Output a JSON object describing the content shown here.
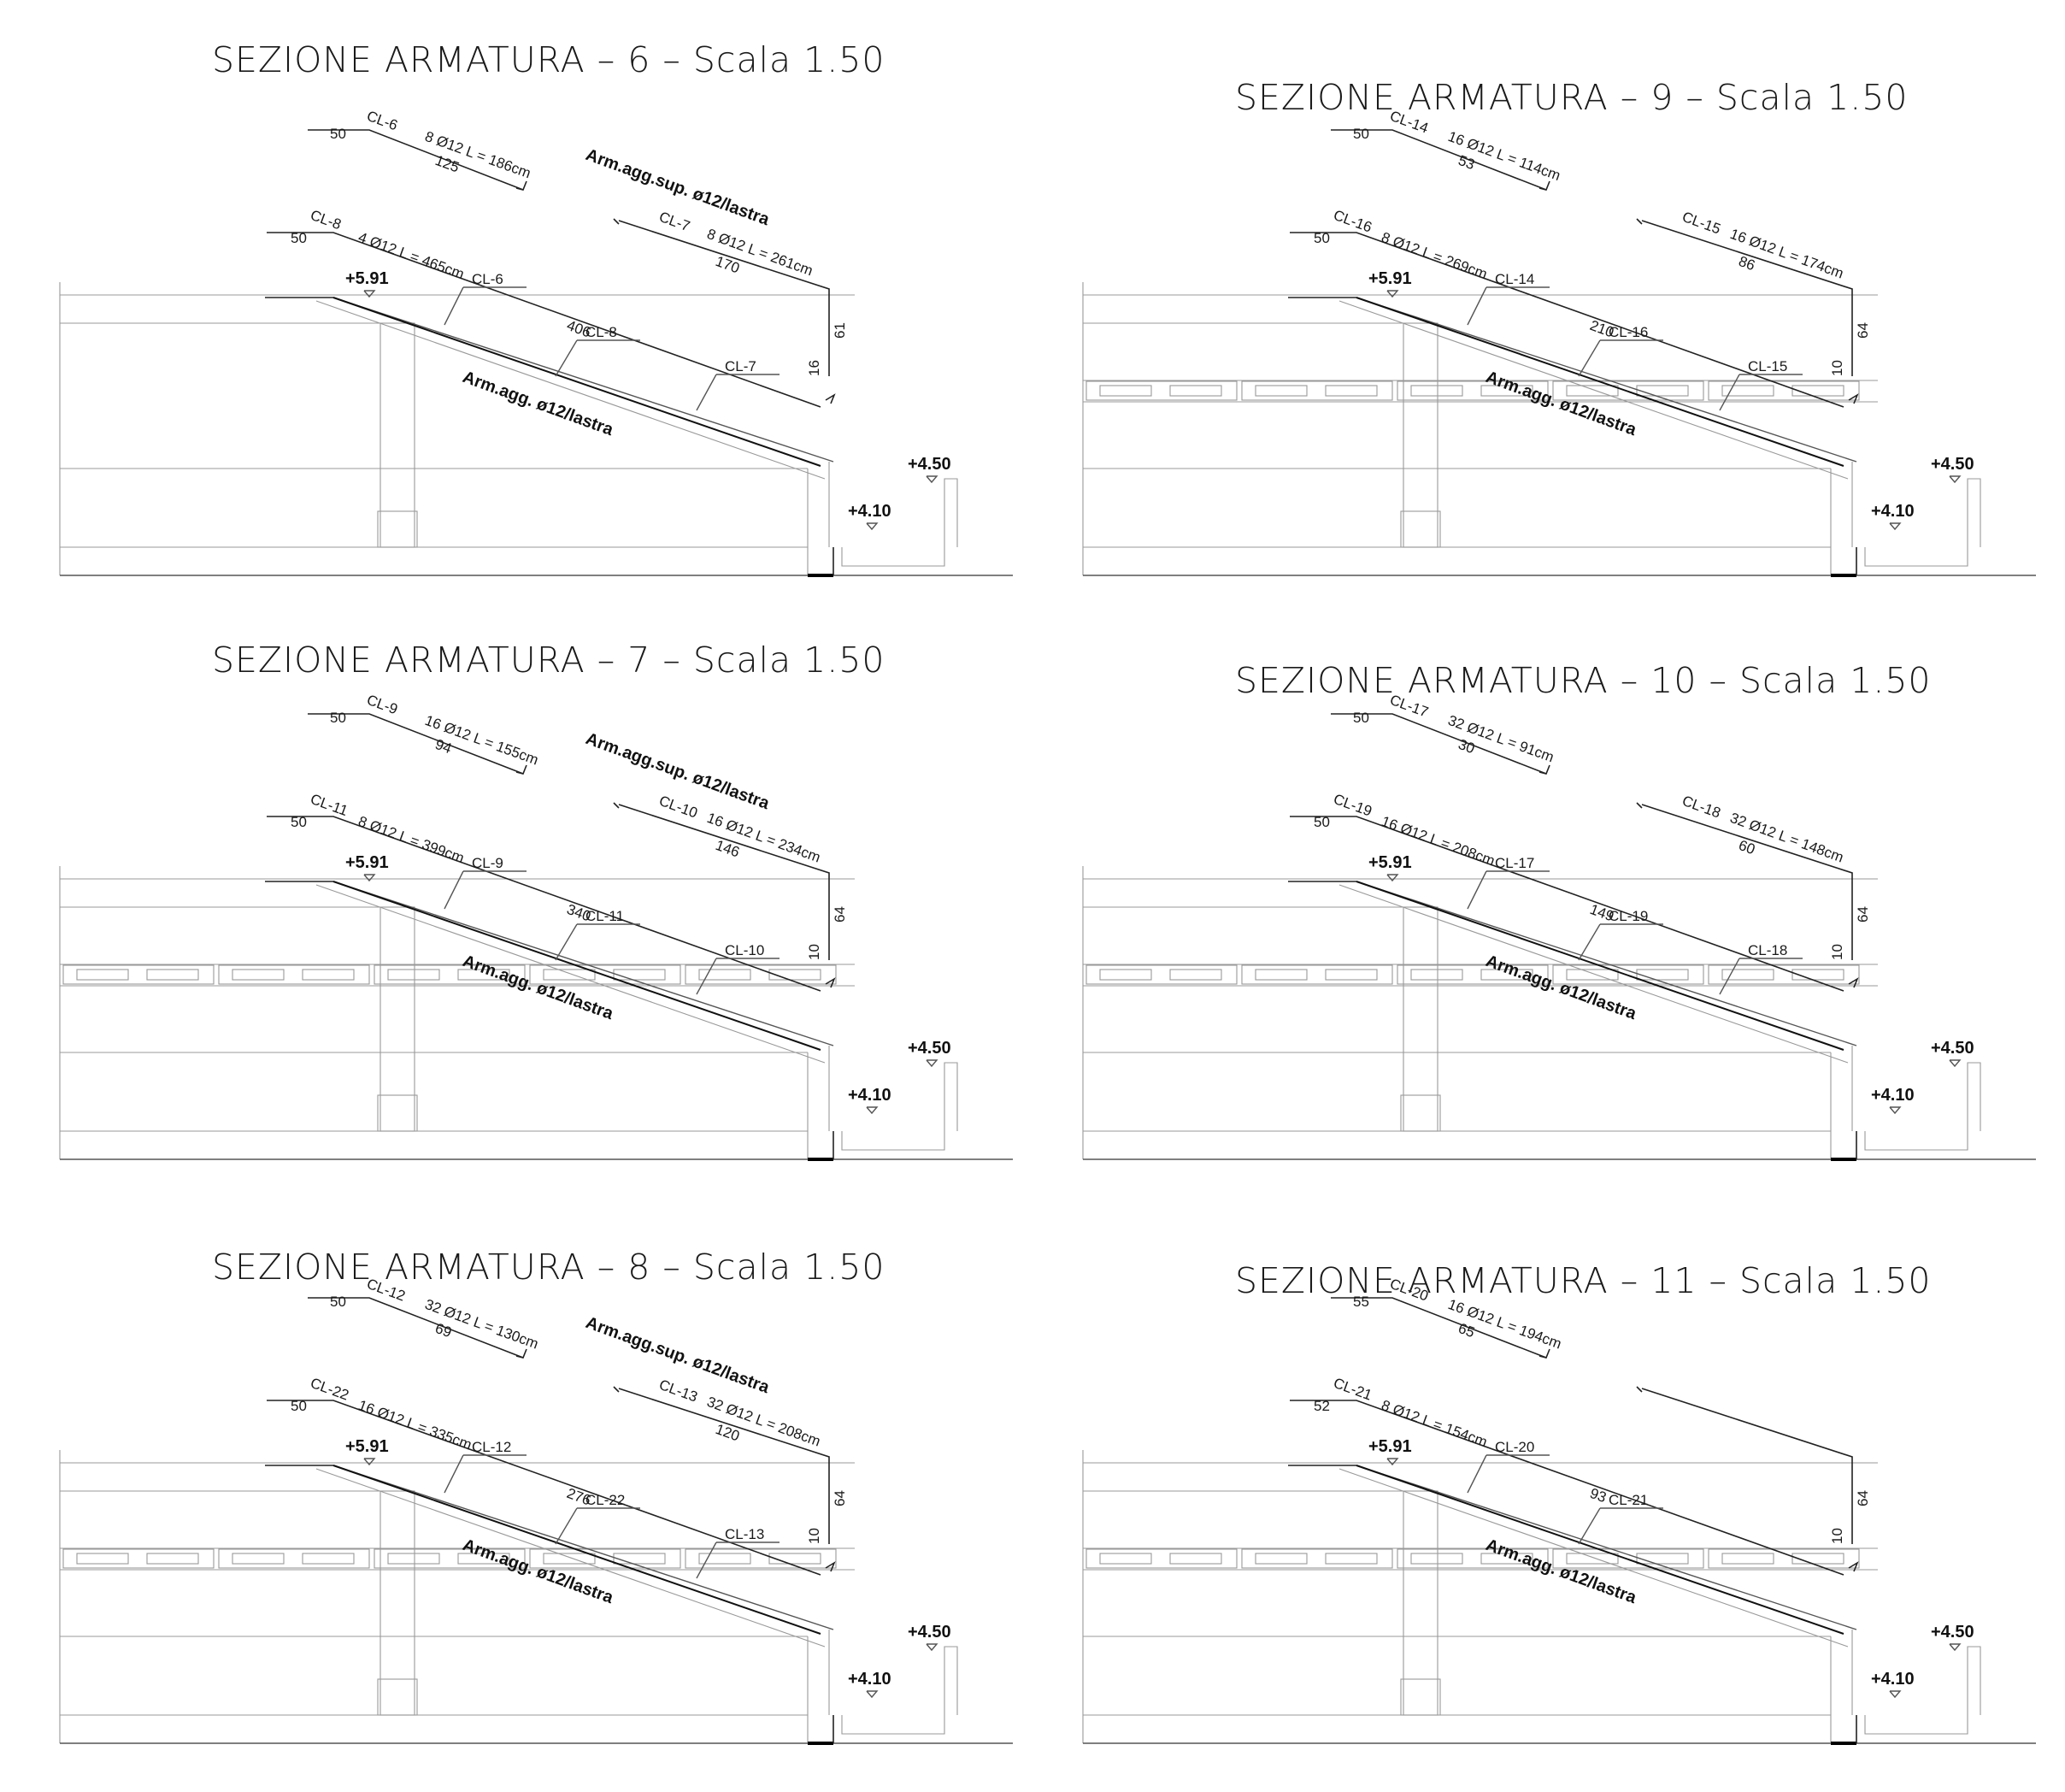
{
  "sections": [
    {
      "id": "s6",
      "title": "SEZIONE ARMATURA – 6 – Scala 1.50",
      "levels": {
        "top": "+5.91",
        "mid": "+4.50",
        "low": "+4.10"
      },
      "note_sup": "Arm.agg.sup. ø12/lastra",
      "note_inf": "Arm.agg. ø12/lastra",
      "has_slab": false,
      "bars": [
        {
          "name": "CL-6",
          "spec": "8 Ø12 L = 186cm",
          "a": "50",
          "b": "125"
        },
        {
          "name": "CL-8",
          "spec": "4 Ø12 L = 465cm",
          "a": "50",
          "b": "406"
        },
        {
          "name": "CL-7",
          "spec": "8 Ø12 L = 261cm",
          "a": "170",
          "b": "61",
          "c": "16"
        }
      ],
      "tags": [
        "CL-6",
        "CL-8",
        "CL-7"
      ]
    },
    {
      "id": "s9",
      "title": "SEZIONE ARMATURA – 9 – Scala 1.50",
      "levels": {
        "top": "+5.91",
        "mid": "+4.50",
        "low": "+4.10"
      },
      "note_sup": "",
      "note_inf": "Arm.agg. ø12/lastra",
      "has_slab": true,
      "bars": [
        {
          "name": "CL-14",
          "spec": "16 Ø12 L = 114cm",
          "a": "50",
          "b": "53"
        },
        {
          "name": "CL-16",
          "spec": "8 Ø12 L = 269cm",
          "a": "50",
          "b": "210"
        },
        {
          "name": "CL-15",
          "spec": "16 Ø12 L = 174cm",
          "a": "86",
          "b": "64",
          "c": "10"
        }
      ],
      "tags": [
        "CL-14",
        "CL-16",
        "CL-15"
      ]
    },
    {
      "id": "s7",
      "title": "SEZIONE ARMATURA – 7 – Scala 1.50",
      "levels": {
        "top": "+5.91",
        "mid": "+4.50",
        "low": "+4.10"
      },
      "note_sup": "Arm.agg.sup. ø12/lastra",
      "note_inf": "Arm.agg. ø12/lastra",
      "has_slab": true,
      "bars": [
        {
          "name": "CL-9",
          "spec": "16 Ø12 L = 155cm",
          "a": "50",
          "b": "94"
        },
        {
          "name": "CL-11",
          "spec": "8 Ø12 L = 399cm",
          "a": "50",
          "b": "340"
        },
        {
          "name": "CL-10",
          "spec": "16 Ø12 L = 234cm",
          "a": "146",
          "b": "64",
          "c": "10"
        }
      ],
      "tags": [
        "CL-9",
        "CL-11",
        "CL-10"
      ]
    },
    {
      "id": "s10",
      "title": "SEZIONE ARMATURA – 10 – Scala 1.50",
      "levels": {
        "top": "+5.91",
        "mid": "+4.50",
        "low": "+4.10"
      },
      "note_sup": "",
      "note_inf": "Arm.agg. ø12/lastra",
      "has_slab": true,
      "bars": [
        {
          "name": "CL-17",
          "spec": "32 Ø12 L = 91cm",
          "a": "50",
          "b": "30"
        },
        {
          "name": "CL-19",
          "spec": "16 Ø12 L = 208cm",
          "a": "50",
          "b": "149"
        },
        {
          "name": "CL-18",
          "spec": "32 Ø12 L = 148cm",
          "a": "60",
          "b": "64",
          "c": "10"
        }
      ],
      "tags": [
        "CL-17",
        "CL-19",
        "CL-18"
      ]
    },
    {
      "id": "s8",
      "title": "SEZIONE ARMATURA – 8 – Scala 1.50",
      "levels": {
        "top": "+5.91",
        "mid": "+4.50",
        "low": "+4.10"
      },
      "note_sup": "Arm.agg.sup. ø12/lastra",
      "note_inf": "Arm.agg. ø12/lastra",
      "has_slab": true,
      "bars": [
        {
          "name": "CL-12",
          "spec": "32 Ø12 L = 130cm",
          "a": "50",
          "b": "69"
        },
        {
          "name": "CL-22",
          "spec": "16 Ø12 L = 335cm",
          "a": "50",
          "b": "276"
        },
        {
          "name": "CL-13",
          "spec": "32 Ø12 L = 208cm",
          "a": "120",
          "b": "64",
          "c": "10"
        }
      ],
      "tags": [
        "CL-12",
        "CL-22",
        "CL-13"
      ]
    },
    {
      "id": "s11",
      "title": "SEZIONE ARMATURA – 11 – Scala 1.50",
      "levels": {
        "top": "+5.91",
        "mid": "+4.50",
        "low": "+4.10"
      },
      "note_sup": "",
      "note_inf": "Arm.agg. ø12/lastra",
      "has_slab": true,
      "bars": [
        {
          "name": "CL-20",
          "spec": "16 Ø12 L = 194cm",
          "a": "55",
          "b": "65"
        },
        {
          "name": "CL-21",
          "spec": "8 Ø12 L = 154cm",
          "a": "52",
          "b": "93"
        },
        {
          "name": "",
          "spec": "",
          "a": "",
          "b": "64",
          "c": "10"
        }
      ],
      "tags": [
        "CL-20",
        "CL-21"
      ]
    }
  ]
}
